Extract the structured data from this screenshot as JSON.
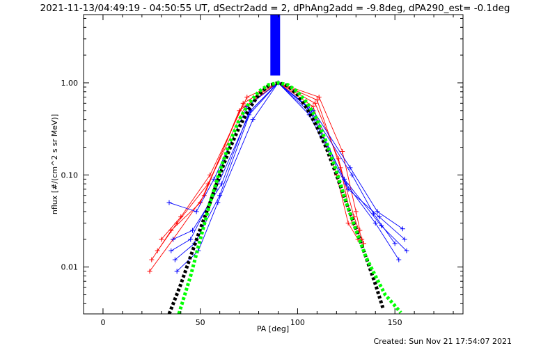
{
  "chart_data": {
    "type": "line",
    "title": "2021-11-13/04:49:19 - 04:50:55 UT, dSectr2add = 2, dPhAng2add = -9.8deg, dPA290_est= -0.1deg",
    "xlabel": "PA [deg]",
    "ylabel": "nflux [#/(cm^2 s sr MeV)]",
    "xlim": [
      -10,
      185
    ],
    "ylim": [
      0.0031,
      5.5
    ],
    "yscale": "log",
    "x_ticks": [
      "0",
      "50",
      "100",
      "150"
    ],
    "y_ticks": [
      "0.01",
      "0.10",
      "1.00"
    ],
    "grid": false,
    "footer": "Created: Sun Nov 21 17:54:07 2021",
    "colors": {
      "red_series": "#ff0000",
      "blue_series": "#0000ff",
      "black_fit": "#000000",
      "green_fit": "#00ff00"
    },
    "vertical_band": {
      "x_range": [
        86,
        91
      ],
      "y_range": [
        1.2,
        5.5
      ],
      "color": "#0000ff"
    },
    "series": [
      {
        "color": "red",
        "marker": "+",
        "x": [
          25,
          35,
          50,
          72,
          90,
          110,
          122,
          128,
          133
        ],
        "y": [
          0.012,
          0.025,
          0.05,
          0.6,
          1.0,
          0.65,
          0.12,
          0.03,
          0.02
        ]
      },
      {
        "color": "red",
        "marker": "+",
        "x": [
          28,
          38,
          54,
          73,
          90,
          109,
          121,
          129,
          134
        ],
        "y": [
          0.015,
          0.03,
          0.08,
          0.55,
          1.0,
          0.6,
          0.15,
          0.035,
          0.018
        ]
      },
      {
        "color": "red",
        "marker": "+",
        "x": [
          24,
          36,
          52,
          70,
          90,
          111,
          123,
          130,
          132
        ],
        "y": [
          0.009,
          0.02,
          0.06,
          0.5,
          1.0,
          0.7,
          0.18,
          0.04,
          0.025
        ]
      },
      {
        "color": "red",
        "marker": "+",
        "x": [
          30,
          40,
          55,
          74,
          90,
          108,
          120,
          126,
          131
        ],
        "y": [
          0.02,
          0.035,
          0.1,
          0.7,
          1.0,
          0.55,
          0.1,
          0.03,
          0.02
        ]
      },
      {
        "color": "blue",
        "marker": "+",
        "x": [
          35,
          45,
          58,
          75,
          90,
          107,
          125,
          140,
          152
        ],
        "y": [
          0.015,
          0.02,
          0.07,
          0.45,
          1.0,
          0.5,
          0.08,
          0.03,
          0.012
        ]
      },
      {
        "color": "blue",
        "marker": "+",
        "x": [
          37,
          47,
          60,
          76,
          90,
          106,
          126,
          142,
          155
        ],
        "y": [
          0.012,
          0.018,
          0.06,
          0.5,
          1.0,
          0.45,
          0.07,
          0.035,
          0.02
        ]
      },
      {
        "color": "blue",
        "marker": "+",
        "x": [
          34,
          48,
          57,
          74,
          90,
          108,
          127,
          141,
          154
        ],
        "y": [
          0.05,
          0.04,
          0.09,
          0.55,
          1.0,
          0.5,
          0.12,
          0.04,
          0.026
        ]
      },
      {
        "color": "blue",
        "marker": "+",
        "x": [
          38,
          49,
          59,
          77,
          90,
          105,
          124,
          143,
          156
        ],
        "y": [
          0.009,
          0.015,
          0.05,
          0.4,
          1.0,
          0.55,
          0.09,
          0.028,
          0.015
        ]
      },
      {
        "color": "blue",
        "marker": "+",
        "x": [
          36,
          46,
          61,
          75,
          90,
          109,
          128,
          139,
          150
        ],
        "y": [
          0.02,
          0.025,
          0.08,
          0.48,
          1.0,
          0.42,
          0.1,
          0.038,
          0.018
        ]
      }
    ],
    "fits": [
      {
        "name": "",
        "color": "black",
        "x": [
          34,
          40,
          45,
          50,
          55,
          60,
          65,
          70,
          75,
          80,
          85,
          90,
          95,
          100,
          105,
          110,
          115,
          120,
          125,
          130,
          135,
          140,
          144
        ],
        "y": [
          0.0031,
          0.0065,
          0.013,
          0.026,
          0.05,
          0.1,
          0.19,
          0.33,
          0.52,
          0.74,
          0.93,
          1.0,
          0.93,
          0.74,
          0.52,
          0.33,
          0.19,
          0.1,
          0.05,
          0.026,
          0.013,
          0.0065,
          0.0035
        ]
      },
      {
        "name": "",
        "color": "green",
        "x": [
          39,
          45,
          50,
          55,
          60,
          65,
          70,
          75,
          80,
          85,
          90,
          95,
          100,
          105,
          110,
          115,
          120,
          125,
          130,
          135,
          140,
          145,
          150,
          153
        ],
        "y": [
          0.0031,
          0.008,
          0.02,
          0.05,
          0.11,
          0.22,
          0.4,
          0.6,
          0.8,
          0.95,
          1.0,
          0.95,
          0.8,
          0.6,
          0.4,
          0.22,
          0.11,
          0.05,
          0.025,
          0.013,
          0.008,
          0.005,
          0.0038,
          0.0032
        ]
      }
    ]
  }
}
